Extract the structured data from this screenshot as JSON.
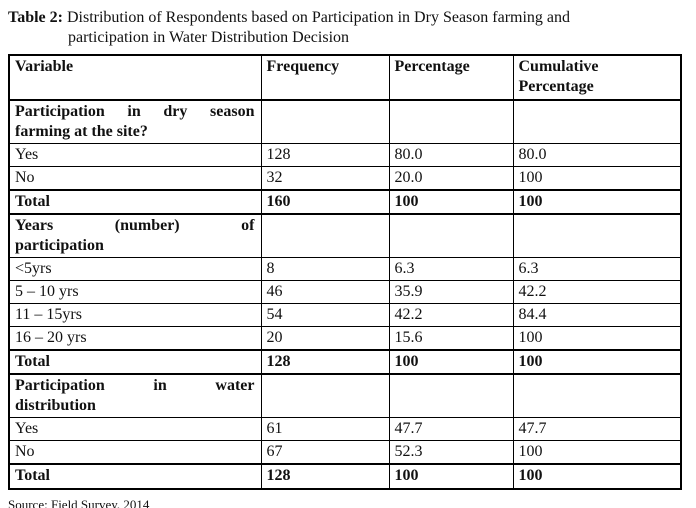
{
  "page": {
    "title_label": "Table 2:",
    "title_line1": "Distribution of Respondents based on Participation in Dry Season farming and",
    "title_line2": "participation in Water Distribution Decision",
    "source": "Source: Field Survey, 2014"
  },
  "table": {
    "columns": [
      "Variable",
      "Frequency",
      "Percentage",
      "Cumulative\nPercentage"
    ],
    "rows": [
      {
        "type": "section",
        "variable_line1": "Participation in dry season",
        "variable_line2": "farming at the site?",
        "frequency": "",
        "percentage": "",
        "cumulative": ""
      },
      {
        "type": "data",
        "variable": "Yes",
        "frequency": "128",
        "percentage": "80.0",
        "cumulative": "80.0"
      },
      {
        "type": "data",
        "variable": "No",
        "frequency": "32",
        "percentage": "20.0",
        "cumulative": "100"
      },
      {
        "type": "total",
        "variable": "Total",
        "frequency": "160",
        "percentage": "100",
        "cumulative": "100"
      },
      {
        "type": "section",
        "variable_line1": "Years (number) of",
        "variable_line2": "participation",
        "frequency": "",
        "percentage": "",
        "cumulative": ""
      },
      {
        "type": "data",
        "variable": "<5yrs",
        "frequency": "8",
        "percentage": "6.3",
        "cumulative": "6.3"
      },
      {
        "type": "data",
        "variable": "5 – 10 yrs",
        "frequency": "46",
        "percentage": "35.9",
        "cumulative": "42.2"
      },
      {
        "type": "data",
        "variable": "11 – 15yrs",
        "frequency": "54",
        "percentage": "42.2",
        "cumulative": "84.4"
      },
      {
        "type": "data",
        "variable": "16 – 20 yrs",
        "frequency": "20",
        "percentage": "15.6",
        "cumulative": "100"
      },
      {
        "type": "total",
        "variable": "Total",
        "frequency": "128",
        "percentage": "100",
        "cumulative": "100"
      },
      {
        "type": "section",
        "variable_line1": "Participation in water",
        "variable_line2": "distribution",
        "frequency": "",
        "percentage": "",
        "cumulative": ""
      },
      {
        "type": "data",
        "variable": "Yes",
        "frequency": "61",
        "percentage": "47.7",
        "cumulative": "47.7"
      },
      {
        "type": "data",
        "variable": "No",
        "frequency": "67",
        "percentage": "52.3",
        "cumulative": "100"
      },
      {
        "type": "total",
        "variable": "Total",
        "frequency": "128",
        "percentage": "100",
        "cumulative": "100"
      }
    ]
  },
  "colors": {
    "text": "#111111",
    "border": "#000000",
    "background": "#ffffff"
  }
}
